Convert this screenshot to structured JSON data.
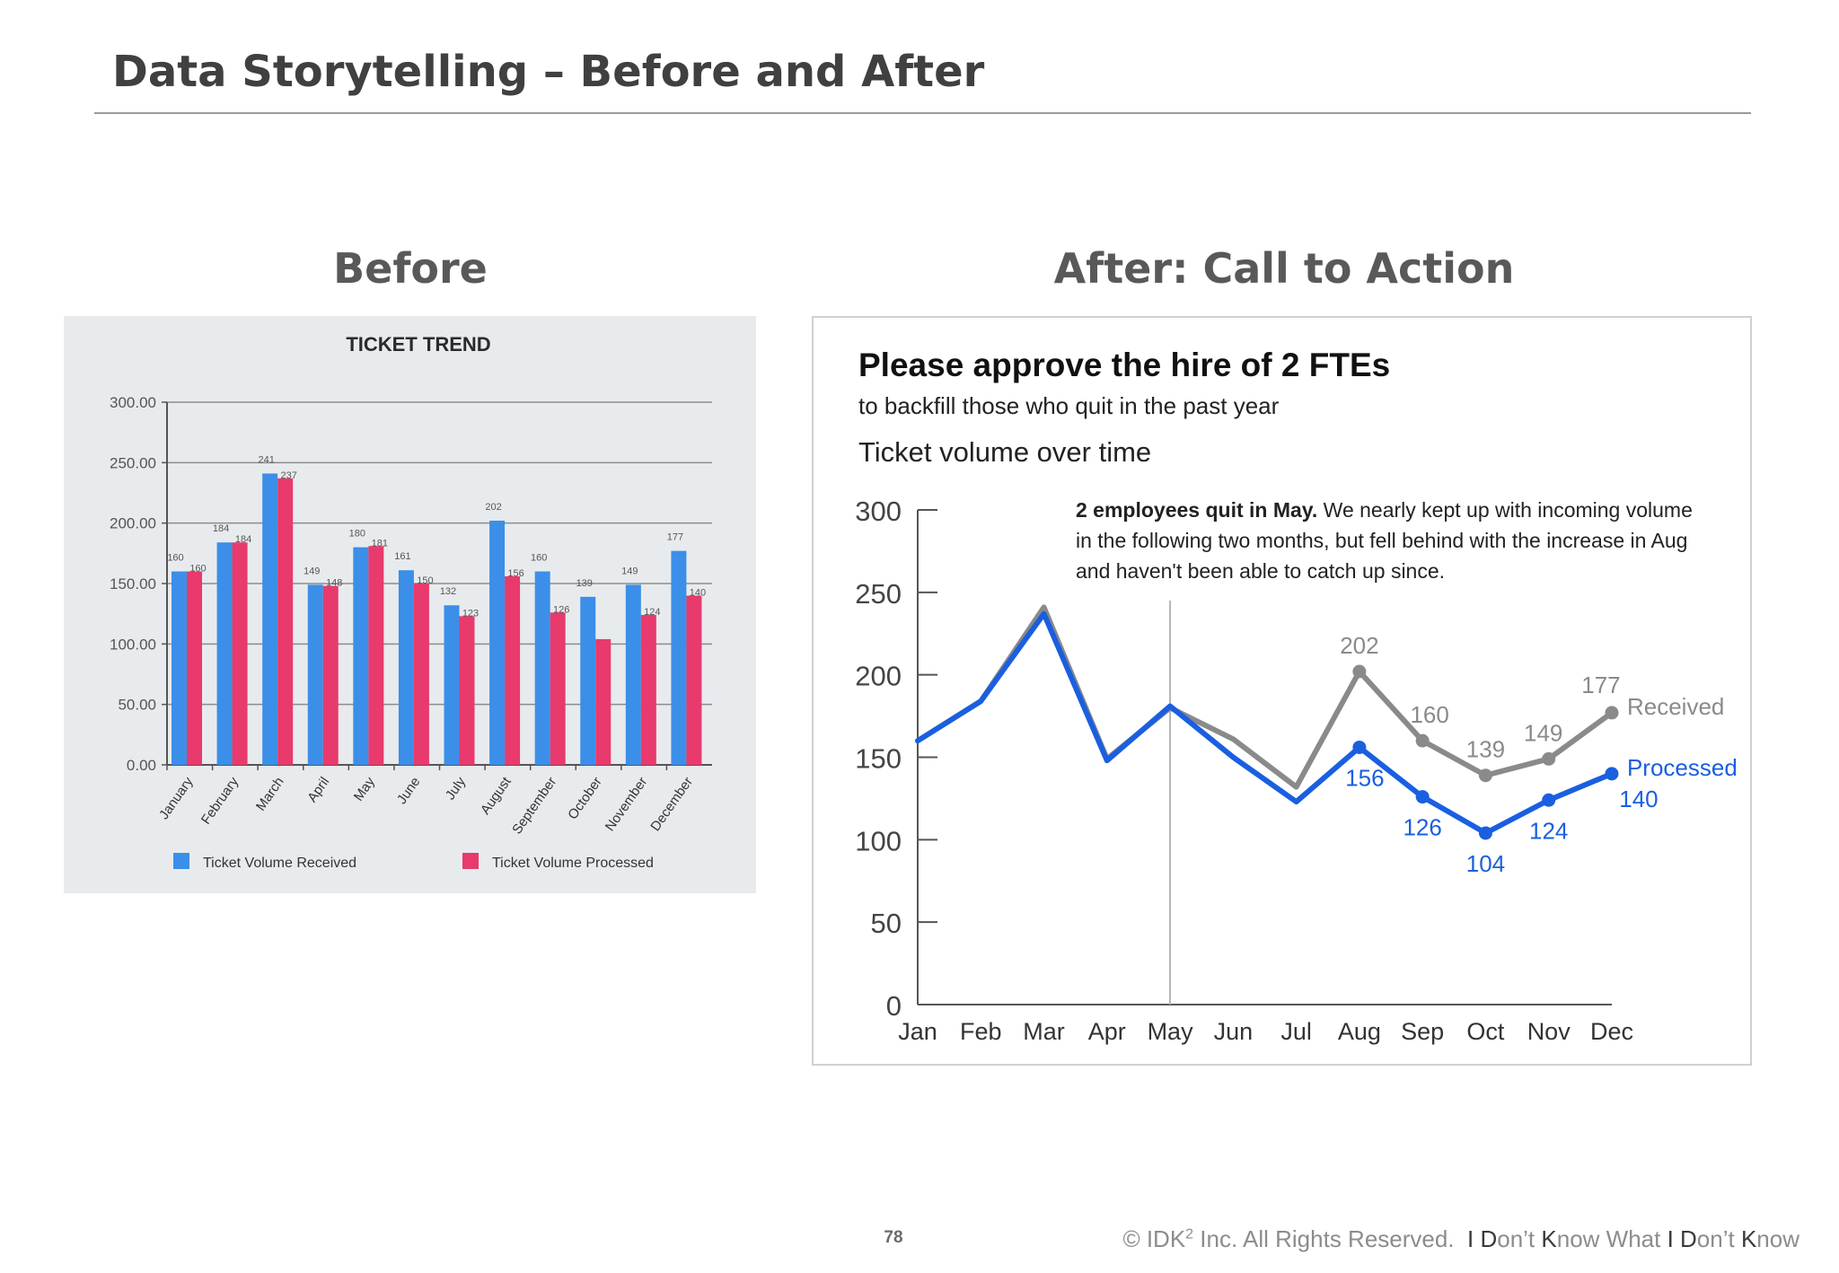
{
  "slide": {
    "title": "Data Storytelling – Before and After",
    "before_heading": "Before",
    "after_heading": "After: Call to Action",
    "page_number": "78",
    "footer": {
      "copyright": "© IDK",
      "sup": "2",
      "rest": " Inc. All Rights Reserved.",
      "tag_parts": [
        "I",
        " D",
        "on’t ",
        "K",
        "now What ",
        "I",
        " D",
        "on’t ",
        "K",
        "now"
      ]
    }
  },
  "chart_data": [
    {
      "type": "bar",
      "title": "TICKET TREND",
      "categories": [
        "January",
        "February",
        "March",
        "April",
        "May",
        "June",
        "July",
        "August",
        "September",
        "October",
        "November",
        "December"
      ],
      "series": [
        {
          "name": "Ticket Volume Received",
          "color": "#3b8fe8",
          "values": [
            160,
            184,
            241,
            149,
            180,
            161,
            132,
            202,
            160,
            139,
            149,
            177
          ],
          "labels": [
            "160",
            "184",
            "241",
            "149",
            "180",
            "161",
            "132",
            "202",
            "160",
            "139",
            "149",
            "177"
          ]
        },
        {
          "name": "Ticket Volume Processed",
          "color": "#e83a6c",
          "values": [
            160,
            184,
            237,
            148,
            181,
            150,
            123,
            156,
            126,
            104,
            124,
            140
          ],
          "labels": [
            "160",
            "184",
            "237",
            "148",
            "181",
            "150",
            "123",
            "156",
            "126",
            "",
            "124",
            "140"
          ]
        }
      ],
      "ylim": [
        0,
        300
      ],
      "yticks": [
        "0.00",
        "50.00",
        "100.00",
        "150.00",
        "200.00",
        "250.00",
        "300.00"
      ],
      "grid": true,
      "legend": "bottom"
    },
    {
      "type": "line",
      "title": "Please approve the hire of 2 FTEs",
      "subtitle": "to backfill those who quit in the past year",
      "chart_title": "Ticket volume over time",
      "annotation": {
        "bold": "2 employees quit in May.",
        "lines": [
          " We nearly kept up with incoming volume",
          "in the following two months, but fell behind with the increase in Aug",
          "and haven't been able to catch up since."
        ]
      },
      "categories": [
        "Jan",
        "Feb",
        "Mar",
        "Apr",
        "May",
        "Jun",
        "Jul",
        "Aug",
        "Sep",
        "Oct",
        "Nov",
        "Dec"
      ],
      "series": [
        {
          "name": "Received",
          "color": "#8a8a8a",
          "values": [
            160,
            184,
            241,
            149,
            180,
            161,
            132,
            202,
            160,
            139,
            149,
            177
          ],
          "labels": [
            "",
            "",
            "",
            "",
            "",
            "",
            "",
            "202",
            "160",
            "139",
            "149",
            "177"
          ]
        },
        {
          "name": "Processed",
          "color": "#1a5fe0",
          "values": [
            160,
            184,
            237,
            148,
            181,
            150,
            123,
            156,
            126,
            104,
            124,
            140
          ],
          "labels": [
            "",
            "",
            "",
            "",
            "",
            "",
            "",
            "156",
            "126",
            "104",
            "124",
            "140"
          ]
        }
      ],
      "marked_points_from": "Aug",
      "reference_line": "May",
      "ylim": [
        0,
        300
      ],
      "yticks": [
        "0",
        "50",
        "100",
        "150",
        "200",
        "250",
        "300"
      ],
      "grid": false
    }
  ]
}
